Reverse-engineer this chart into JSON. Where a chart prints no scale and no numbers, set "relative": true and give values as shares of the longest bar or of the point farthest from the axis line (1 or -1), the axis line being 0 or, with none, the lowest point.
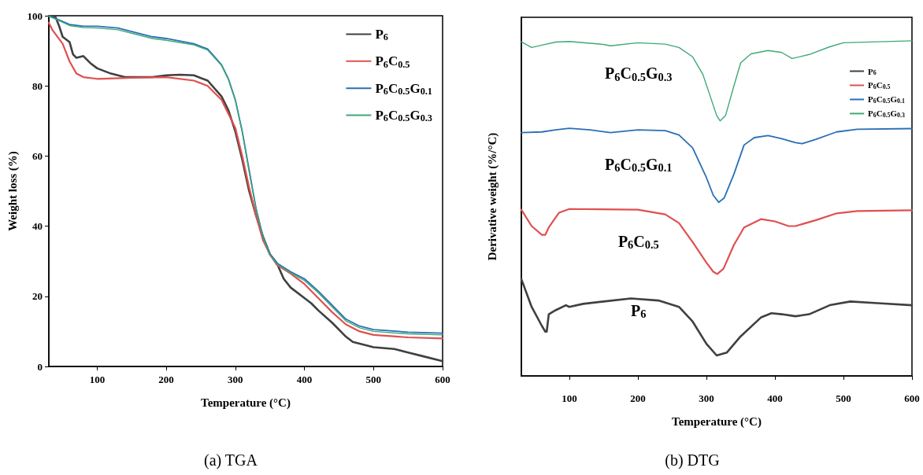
{
  "chart_data": [
    {
      "type": "line",
      "subtitle": "(a) TGA",
      "xlabel": "Temperature (°C)",
      "ylabel": "Weight loss (%)",
      "xlim": [
        30,
        600
      ],
      "xticks": [
        100,
        200,
        300,
        400,
        500,
        600
      ],
      "ylim": [
        0,
        100
      ],
      "yticks": [
        0,
        20,
        40,
        60,
        80,
        100
      ],
      "legend": "top right",
      "grid": false,
      "marker": "none",
      "line_style": "solid",
      "series": [
        {
          "name": "P$_{6}$",
          "color": "#404040",
          "x": [
            30,
            40,
            45,
            50,
            60,
            65,
            70,
            80,
            90,
            100,
            120,
            140,
            160,
            180,
            200,
            220,
            240,
            260,
            280,
            290,
            300,
            310,
            320,
            330,
            340,
            350,
            360,
            370,
            380,
            400,
            410,
            420,
            440,
            460,
            470,
            500,
            530,
            550,
            570,
            600
          ],
          "values": [
            100,
            99.5,
            97,
            94,
            92.5,
            89,
            88,
            88.5,
            86.5,
            85,
            83.5,
            82.5,
            82.5,
            82.5,
            83,
            83.2,
            83,
            81.5,
            77,
            73,
            67,
            59,
            50,
            43,
            37,
            32,
            29.5,
            25,
            22.5,
            19.5,
            18,
            16,
            12.5,
            8.5,
            7,
            5.5,
            5,
            4,
            3,
            1.5
          ]
        },
        {
          "name": "P$_{6}$C$_{0.5}$",
          "color": "#e05050",
          "x": [
            30,
            35,
            50,
            60,
            70,
            80,
            100,
            150,
            200,
            240,
            260,
            280,
            300,
            310,
            320,
            330,
            340,
            350,
            360,
            380,
            400,
            420,
            440,
            460,
            480,
            500,
            550,
            600
          ],
          "values": [
            98,
            96,
            92,
            87,
            83.5,
            82.5,
            82,
            82.3,
            82.5,
            81.5,
            80,
            76,
            68,
            60,
            51,
            43,
            36,
            32,
            29,
            26.5,
            23.5,
            19.5,
            15.5,
            12,
            10,
            9,
            8.3,
            8
          ]
        },
        {
          "name": "P$_{6}$C$_{0.5}$G$_{0.1}$",
          "color": "#2a6fb5",
          "x": [
            30,
            40,
            60,
            80,
            100,
            130,
            150,
            180,
            200,
            240,
            260,
            280,
            290,
            300,
            310,
            320,
            330,
            340,
            350,
            360,
            380,
            400,
            420,
            440,
            460,
            480,
            500,
            550,
            600
          ],
          "values": [
            100,
            99.2,
            97.5,
            97,
            97,
            96.5,
            95.5,
            94,
            93.5,
            92,
            90.5,
            86,
            82,
            76,
            67,
            56,
            45,
            37,
            32,
            29.5,
            27,
            25,
            21.5,
            17.5,
            13.5,
            11.5,
            10.5,
            9.8,
            9.5
          ]
        },
        {
          "name": "P$_{6}$C$_{0.5}$G$_{0.3}$",
          "color": "#3fa877",
          "x": [
            30,
            40,
            60,
            80,
            100,
            130,
            150,
            180,
            200,
            240,
            260,
            280,
            290,
            300,
            310,
            320,
            330,
            340,
            350,
            360,
            380,
            400,
            420,
            440,
            460,
            480,
            500,
            550,
            600
          ],
          "values": [
            99.8,
            99,
            97.2,
            96.6,
            96.5,
            96,
            95,
            93.5,
            93,
            91.7,
            90.2,
            85.8,
            81.8,
            75.8,
            66.8,
            55.5,
            44.8,
            36.8,
            31.8,
            29.2,
            26.7,
            24.5,
            21,
            17,
            13,
            11,
            10,
            9.3,
            9
          ]
        }
      ]
    },
    {
      "type": "line",
      "subtitle": "(b) DTG",
      "xlabel": "Temperature (°C)",
      "ylabel": "Derivative weight (%/°C)",
      "relative": true,
      "xlim": [
        30,
        600
      ],
      "xticks": [
        100,
        200,
        300,
        400,
        500,
        600
      ],
      "legend": "top right",
      "grid": false,
      "marker": "none",
      "line_style": "solid",
      "annotations": [
        "P$_{6}$C$_{0.5}$G$_{0.3}$",
        "P$_{6}$C$_{0.5}$G$_{0.1}$",
        "P$_{6}$C$_{0.5}$",
        "P$_{6}$"
      ],
      "series": [
        {
          "name": "P$_{6}$",
          "color": "#404040",
          "x": [
            30,
            45,
            60,
            65,
            67,
            70,
            80,
            95,
            100,
            120,
            150,
            190,
            230,
            260,
            280,
            300,
            315,
            330,
            350,
            380,
            395,
            410,
            430,
            450,
            480,
            510,
            550,
            600
          ],
          "values": [
            0.289,
            0.206,
            0.149,
            0.132,
            0.132,
            0.184,
            0.196,
            0.211,
            0.206,
            0.215,
            0.222,
            0.231,
            0.225,
            0.206,
            0.162,
            0.096,
            0.061,
            0.07,
            0.118,
            0.175,
            0.187,
            0.184,
            0.178,
            0.184,
            0.211,
            0.222,
            0.217,
            0.211
          ]
        },
        {
          "name": "P$_{6}$C$_{0.5}$",
          "color": "#e05050",
          "x": [
            30,
            45,
            60,
            65,
            70,
            85,
            100,
            200,
            240,
            260,
            280,
            300,
            310,
            316,
            325,
            340,
            355,
            380,
            400,
            420,
            430,
            460,
            490,
            520,
            600
          ],
          "values": [
            0.496,
            0.447,
            0.421,
            0.421,
            0.443,
            0.487,
            0.498,
            0.496,
            0.482,
            0.456,
            0.399,
            0.338,
            0.311,
            0.304,
            0.32,
            0.39,
            0.443,
            0.468,
            0.461,
            0.447,
            0.447,
            0.465,
            0.485,
            0.492,
            0.494
          ]
        },
        {
          "name": "P$_{6}$C$_{0.5}$G$_{0.1}$",
          "color": "#2a6fb5",
          "x": [
            30,
            60,
            80,
            100,
            130,
            160,
            200,
            240,
            260,
            280,
            300,
            310,
            318,
            326,
            340,
            355,
            370,
            390,
            410,
            430,
            440,
            460,
            490,
            520,
            600
          ],
          "values": [
            0.726,
            0.728,
            0.734,
            0.739,
            0.734,
            0.726,
            0.734,
            0.732,
            0.719,
            0.68,
            0.592,
            0.539,
            0.518,
            0.531,
            0.601,
            0.689,
            0.711,
            0.717,
            0.708,
            0.696,
            0.693,
            0.706,
            0.728,
            0.736,
            0.738
          ]
        },
        {
          "name": "P$_{6}$C$_{0.5}$G$_{0.3}$",
          "color": "#3fa877",
          "x": [
            30,
            45,
            60,
            80,
            100,
            150,
            160,
            200,
            240,
            260,
            280,
            295,
            305,
            315,
            320,
            328,
            340,
            350,
            365,
            390,
            410,
            425,
            440,
            450,
            480,
            500,
            550,
            600
          ],
          "values": [
            0.997,
            0.98,
            0.987,
            0.996,
            0.998,
            0.989,
            0.985,
            0.994,
            0.99,
            0.98,
            0.952,
            0.899,
            0.838,
            0.777,
            0.761,
            0.777,
            0.864,
            0.934,
            0.961,
            0.971,
            0.965,
            0.947,
            0.954,
            0.959,
            0.982,
            0.994,
            0.997,
            1
          ]
        }
      ]
    }
  ]
}
